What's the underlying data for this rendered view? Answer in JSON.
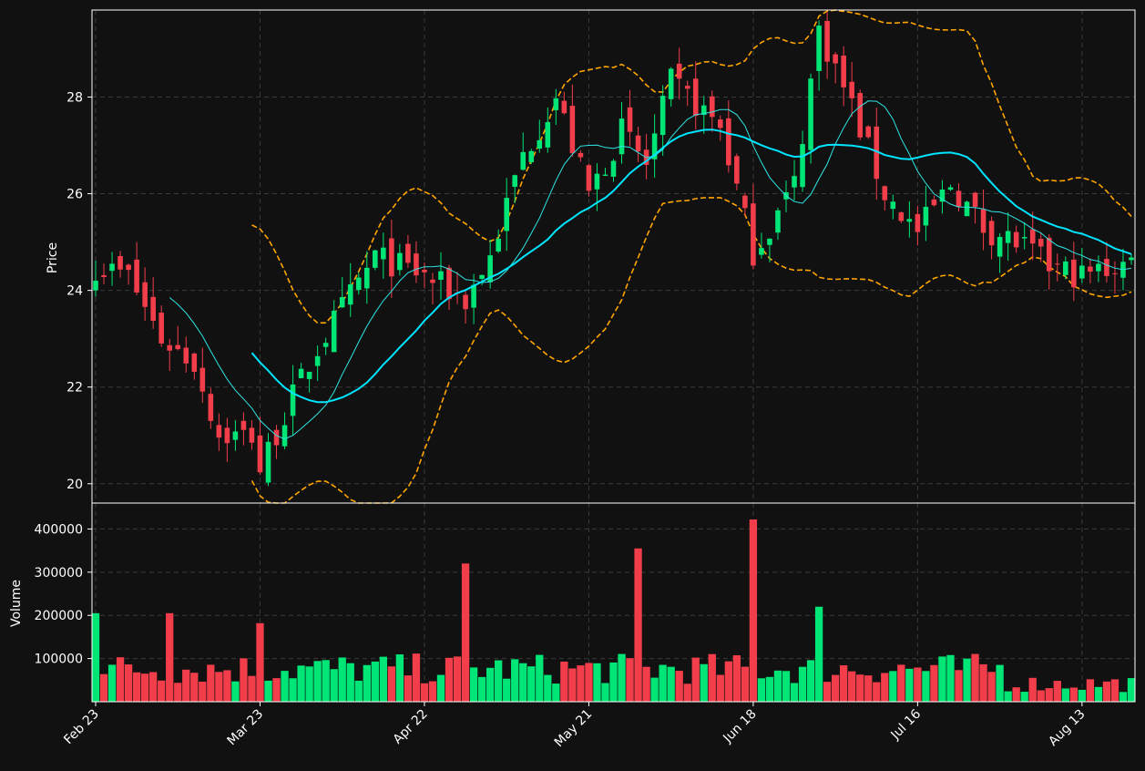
{
  "chart_data": {
    "type": "candlestick",
    "price_panel": {
      "ylabel": "Price",
      "yticks": [
        20,
        22,
        24,
        26,
        28
      ],
      "ylim": [
        19.6,
        29.8
      ],
      "grid": true
    },
    "volume_panel": {
      "ylabel": "Volume",
      "yticks": [
        100000,
        200000,
        300000,
        400000
      ],
      "ylim": [
        0,
        460000
      ],
      "grid": true
    },
    "x_tick_labels": [
      "Feb 23",
      "Mar 23",
      "Apr 22",
      "May 21",
      "Jun 18",
      "Jul 16",
      "Aug 13"
    ],
    "x_tick_index": [
      0,
      20,
      40,
      60,
      80,
      100,
      120
    ],
    "bar_count": 127,
    "colors": {
      "background": "#111111",
      "up": "#00e676",
      "down": "#f23d4a",
      "ma_fast": "#2ee6e6",
      "ma_slow": "#00e5ff",
      "bollinger": "#ffa500",
      "axis": "#ffffff",
      "grid": "#3a3a3a"
    },
    "series": [
      {
        "name": "close_start",
        "values": [
          24.5
        ]
      },
      {
        "name": "close_knots_index",
        "values": [
          0,
          4,
          8,
          12,
          15,
          19,
          20,
          24,
          27,
          34,
          40,
          45,
          48,
          52,
          56,
          60,
          64,
          67,
          70,
          76,
          80,
          82,
          85,
          88,
          92,
          96,
          100,
          104,
          108,
          112,
          116,
          120,
          126
        ]
      },
      {
        "name": "close_knots_value",
        "values": [
          24.5,
          24.3,
          23.0,
          22.5,
          21.0,
          21.0,
          20.3,
          21.8,
          22.8,
          24.7,
          24.3,
          23.8,
          24.7,
          26.8,
          28.0,
          26.0,
          27.3,
          26.6,
          28.3,
          27.4,
          24.8,
          25.3,
          26.2,
          29.4,
          27.8,
          26.0,
          25.2,
          26.2,
          25.3,
          25.0,
          24.5,
          24.3,
          24.6
        ]
      },
      {
        "name": "volume_typical",
        "values": [
          80000
        ]
      },
      {
        "name": "volume_spikes_index",
        "values": [
          0,
          9,
          20,
          45,
          66,
          80,
          88
        ]
      },
      {
        "name": "volume_spikes_value",
        "values": [
          205000,
          205000,
          182000,
          320000,
          355000,
          422000,
          220000
        ]
      }
    ]
  }
}
